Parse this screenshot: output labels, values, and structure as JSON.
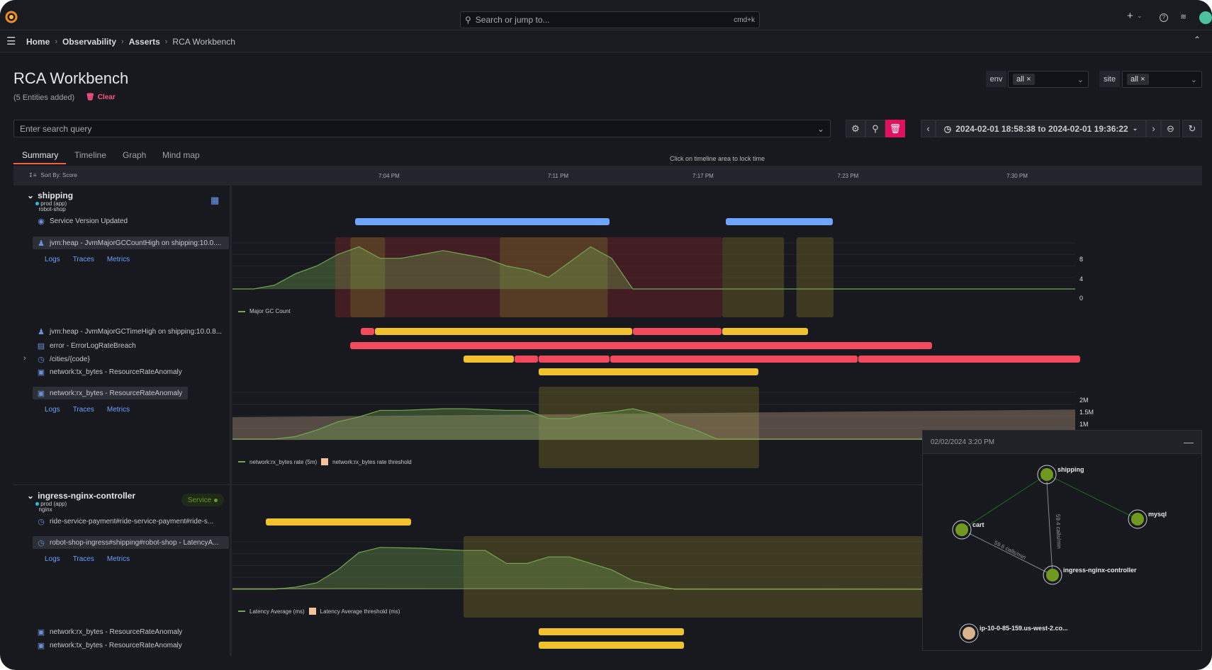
{
  "topbar": {
    "search_placeholder": "Search or jump to...",
    "shortcut": "cmd+k",
    "add_label": "+"
  },
  "breadcrumb": [
    "Home",
    "Observability",
    "Asserts",
    "RCA Workbench"
  ],
  "page": {
    "title": "RCA Workbench",
    "entities": "(5 Entities added)",
    "clear": "Clear"
  },
  "filters": {
    "env_label": "env",
    "env_value": "all",
    "site_label": "site",
    "site_value": "all"
  },
  "query": {
    "placeholder": "Enter search query"
  },
  "time_range": {
    "text": "2024-02-01 18:58:38 to 2024-02-01 19:36:22",
    "start": "18:58:38",
    "end": "19:36:22"
  },
  "tabs": [
    {
      "label": "Summary",
      "active": true
    },
    {
      "label": "Timeline"
    },
    {
      "label": "Graph"
    },
    {
      "label": "Mind map"
    }
  ],
  "hint": "Click on timeline area to lock time",
  "sort_label": "Sort By: Score",
  "ticks": [
    {
      "label": "7:04 PM",
      "t": "19:04:00"
    },
    {
      "label": "7:11 PM",
      "t": "19:11:00"
    },
    {
      "label": "7:17 PM",
      "t": "19:17:00"
    },
    {
      "label": "7:23 PM",
      "t": "19:23:00"
    },
    {
      "label": "7:30 PM",
      "t": "19:30:00"
    }
  ],
  "links": {
    "logs": "Logs",
    "traces": "Traces",
    "metrics": "Metrics"
  },
  "colors": {
    "blue": "#6ea6ff",
    "yellow": "#f2c12e",
    "red": "#f2495c",
    "series": "#73a550",
    "threshold": "#f5c29c"
  },
  "shipping": {
    "name": "shipping",
    "env": "prod (app)",
    "site": "robot-shop",
    "rows": [
      {
        "label": "Service Version Updated",
        "icon": "layers-icon",
        "bars": [
          [
            "19:02:36",
            "19:13:09",
            "blue"
          ],
          [
            "19:17:57",
            "19:22:24",
            "blue"
          ]
        ]
      },
      {
        "label": "jvm:heap - JvmMajorGCCountHigh on shipping:10.0....",
        "icon": "users-icon",
        "bars": []
      },
      {
        "label": "jvm:heap - JvmMajorGCTimeHigh on shipping:10.0.8...",
        "icon": "users-icon",
        "bars": [
          [
            "19:02:50",
            "19:03:25",
            "red"
          ],
          [
            "19:03:25",
            "19:14:06",
            "yellow"
          ],
          [
            "19:14:06",
            "19:17:48",
            "red"
          ],
          [
            "19:17:48",
            "19:21:22",
            "yellow"
          ]
        ]
      },
      {
        "label": "error - ErrorLogRateBreach",
        "icon": "log-icon",
        "bars": [
          [
            "19:02:24",
            "19:26:31",
            "red"
          ]
        ]
      },
      {
        "label": "/cities/{code}",
        "icon": "request-icon",
        "bars": [
          [
            "19:07:05",
            "19:09:12",
            "yellow"
          ],
          [
            "19:09:12",
            "19:10:12",
            "red"
          ],
          [
            "19:10:12",
            "19:13:09",
            "red"
          ],
          [
            "19:13:09",
            "19:23:26",
            "red"
          ],
          [
            "19:23:26",
            "19:32:39",
            "red"
          ]
        ]
      },
      {
        "label": "network:tx_bytes - ResourceRateAnomaly",
        "icon": "resource-icon",
        "bars": [
          [
            "19:10:12",
            "19:19:19",
            "yellow"
          ]
        ]
      },
      {
        "label": "network:rx_bytes - ResourceRateAnomaly",
        "icon": "resource-icon",
        "bars": []
      }
    ]
  },
  "ingress": {
    "name": "ingress-nginx-controller",
    "env": "prod (app)",
    "site": "nginx",
    "badge": "Service",
    "rows": [
      {
        "label": "ride-service-payment#ride-service-payment#ride-s...",
        "icon": "request-icon",
        "bars": [
          [
            "18:58:54",
            "19:04:57",
            "yellow"
          ]
        ]
      },
      {
        "label": "robot-shop-ingress#shipping#robot-shop - LatencyA...",
        "icon": "request-icon",
        "bars": []
      },
      {
        "label": "network:rx_bytes - ResourceRateAnomaly",
        "icon": "resource-icon",
        "bars": [
          [
            "19:10:12",
            "19:16:15",
            "yellow"
          ]
        ]
      },
      {
        "label": "network:tx_bytes - ResourceRateAnomaly",
        "icon": "resource-icon",
        "bars": [
          [
            "19:10:12",
            "19:16:15",
            "yellow"
          ]
        ]
      }
    ]
  },
  "charts": [
    {
      "legend": "Major GC Count",
      "yticks": [
        "8",
        "4",
        "0"
      ],
      "ymax": 12,
      "regions": [
        [
          "19:01:46",
          "19:17:48",
          "red"
        ],
        [
          "19:02:24",
          "19:03:50",
          "olive"
        ],
        [
          "19:08:35",
          "19:13:03",
          "olive"
        ],
        [
          "19:17:48",
          "19:20:21",
          "olive"
        ],
        [
          "19:20:52",
          "19:22:24",
          "olive"
        ]
      ],
      "values": [
        0,
        0,
        1,
        4,
        6,
        9,
        11,
        8,
        8,
        9,
        10,
        9,
        8,
        6,
        5,
        3,
        7,
        11,
        8,
        0,
        0,
        0,
        0,
        0,
        0,
        0,
        0,
        0,
        0,
        0,
        0,
        0,
        0,
        0,
        0,
        0,
        0,
        0,
        0,
        0,
        0
      ]
    },
    {
      "legend": "network:rx_bytes rate (5m)",
      "threshold_legend": "network:rx_bytes rate threshold",
      "yticks": [
        "2M",
        "1.5M",
        "1M"
      ],
      "ymax": 2.9,
      "threshold": [
        1.38,
        1.85
      ],
      "regions": [
        [
          "19:10:12",
          "19:19:19",
          "olive"
        ]
      ],
      "values": [
        0.05,
        0.05,
        0.05,
        0.2,
        0.6,
        1.1,
        1.4,
        1.8,
        1.8,
        1.85,
        1.9,
        1.9,
        1.85,
        1.8,
        1.8,
        1.3,
        1.3,
        1.6,
        1.7,
        1.9,
        1.6,
        1.0,
        0.6,
        0.05,
        0.05,
        0.05,
        0.05,
        0.05,
        0.05,
        0.05,
        0.05,
        0.05,
        0.05,
        0.05,
        0.05,
        0.05,
        0.05,
        0.05,
        0.05,
        0.05,
        0.05
      ]
    },
    {
      "legend": "Latency Average (ms)",
      "threshold_legend": "Latency Average threshold (ms)",
      "ymax": 1.1,
      "threshold": [
        0.0,
        0.02
      ],
      "regions": [
        [
          "19:07:05",
          "19:31:54",
          "olive"
        ]
      ],
      "values": [
        0,
        0,
        0,
        0.05,
        0.15,
        0.45,
        0.85,
        0.97,
        0.96,
        0.95,
        0.92,
        0.9,
        0.9,
        0.6,
        0.6,
        0.75,
        0.75,
        0.6,
        0.45,
        0.2,
        0.1,
        0,
        0,
        0,
        0,
        0,
        0,
        0,
        0,
        0,
        0,
        0,
        0,
        0,
        0,
        0,
        0,
        0,
        0,
        0,
        0
      ]
    }
  ],
  "popup": {
    "date": "02/02/2024 3:20 PM",
    "nodes": [
      {
        "label": "shipping"
      },
      {
        "label": "cart"
      },
      {
        "label": "mysql"
      },
      {
        "label": "ingress-nginx-controller"
      },
      {
        "label": "ip-10-0-85-159.us-west-2.co..."
      }
    ],
    "edges": [
      {
        "label": "59.4 calls/min"
      },
      {
        "label": "59.6 calls/min"
      }
    ]
  }
}
